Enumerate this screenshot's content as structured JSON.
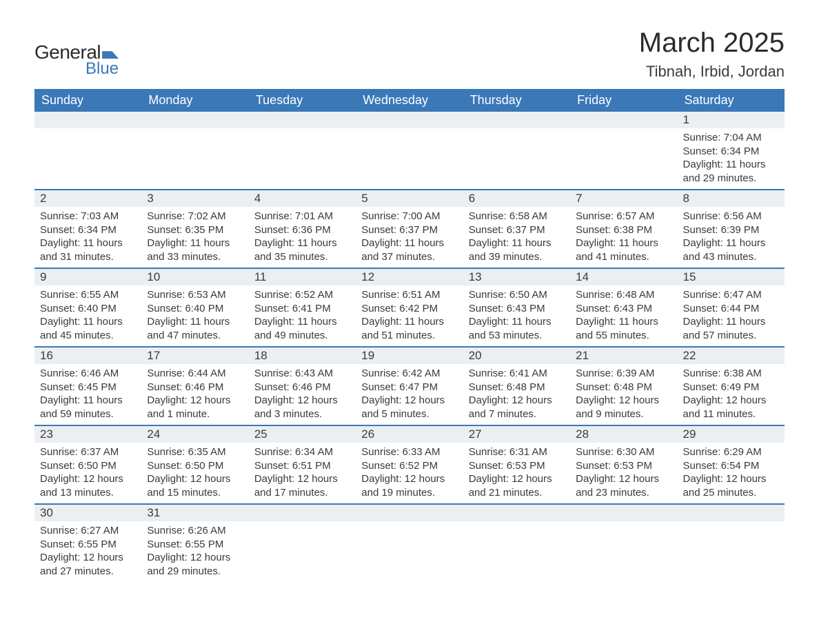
{
  "logo": {
    "general": "General",
    "blue": "Blue"
  },
  "title": "March 2025",
  "location": "Tibnah, Irbid, Jordan",
  "colors": {
    "header_bg": "#3a78b8",
    "header_text": "#ffffff",
    "daynum_bg": "#eceff1",
    "border": "#3a78b8",
    "text": "#3a3a3a",
    "page_bg": "#ffffff"
  },
  "typography": {
    "title_fontsize": 40,
    "location_fontsize": 22,
    "header_fontsize": 18,
    "daynum_fontsize": 17,
    "body_fontsize": 15
  },
  "weekdays": [
    "Sunday",
    "Monday",
    "Tuesday",
    "Wednesday",
    "Thursday",
    "Friday",
    "Saturday"
  ],
  "weeks": [
    [
      null,
      null,
      null,
      null,
      null,
      null,
      {
        "n": "1",
        "sr": "7:04 AM",
        "ss": "6:34 PM",
        "dl": "11 hours and 29 minutes."
      }
    ],
    [
      {
        "n": "2",
        "sr": "7:03 AM",
        "ss": "6:34 PM",
        "dl": "11 hours and 31 minutes."
      },
      {
        "n": "3",
        "sr": "7:02 AM",
        "ss": "6:35 PM",
        "dl": "11 hours and 33 minutes."
      },
      {
        "n": "4",
        "sr": "7:01 AM",
        "ss": "6:36 PM",
        "dl": "11 hours and 35 minutes."
      },
      {
        "n": "5",
        "sr": "7:00 AM",
        "ss": "6:37 PM",
        "dl": "11 hours and 37 minutes."
      },
      {
        "n": "6",
        "sr": "6:58 AM",
        "ss": "6:37 PM",
        "dl": "11 hours and 39 minutes."
      },
      {
        "n": "7",
        "sr": "6:57 AM",
        "ss": "6:38 PM",
        "dl": "11 hours and 41 minutes."
      },
      {
        "n": "8",
        "sr": "6:56 AM",
        "ss": "6:39 PM",
        "dl": "11 hours and 43 minutes."
      }
    ],
    [
      {
        "n": "9",
        "sr": "6:55 AM",
        "ss": "6:40 PM",
        "dl": "11 hours and 45 minutes."
      },
      {
        "n": "10",
        "sr": "6:53 AM",
        "ss": "6:40 PM",
        "dl": "11 hours and 47 minutes."
      },
      {
        "n": "11",
        "sr": "6:52 AM",
        "ss": "6:41 PM",
        "dl": "11 hours and 49 minutes."
      },
      {
        "n": "12",
        "sr": "6:51 AM",
        "ss": "6:42 PM",
        "dl": "11 hours and 51 minutes."
      },
      {
        "n": "13",
        "sr": "6:50 AM",
        "ss": "6:43 PM",
        "dl": "11 hours and 53 minutes."
      },
      {
        "n": "14",
        "sr": "6:48 AM",
        "ss": "6:43 PM",
        "dl": "11 hours and 55 minutes."
      },
      {
        "n": "15",
        "sr": "6:47 AM",
        "ss": "6:44 PM",
        "dl": "11 hours and 57 minutes."
      }
    ],
    [
      {
        "n": "16",
        "sr": "6:46 AM",
        "ss": "6:45 PM",
        "dl": "11 hours and 59 minutes."
      },
      {
        "n": "17",
        "sr": "6:44 AM",
        "ss": "6:46 PM",
        "dl": "12 hours and 1 minute."
      },
      {
        "n": "18",
        "sr": "6:43 AM",
        "ss": "6:46 PM",
        "dl": "12 hours and 3 minutes."
      },
      {
        "n": "19",
        "sr": "6:42 AM",
        "ss": "6:47 PM",
        "dl": "12 hours and 5 minutes."
      },
      {
        "n": "20",
        "sr": "6:41 AM",
        "ss": "6:48 PM",
        "dl": "12 hours and 7 minutes."
      },
      {
        "n": "21",
        "sr": "6:39 AM",
        "ss": "6:48 PM",
        "dl": "12 hours and 9 minutes."
      },
      {
        "n": "22",
        "sr": "6:38 AM",
        "ss": "6:49 PM",
        "dl": "12 hours and 11 minutes."
      }
    ],
    [
      {
        "n": "23",
        "sr": "6:37 AM",
        "ss": "6:50 PM",
        "dl": "12 hours and 13 minutes."
      },
      {
        "n": "24",
        "sr": "6:35 AM",
        "ss": "6:50 PM",
        "dl": "12 hours and 15 minutes."
      },
      {
        "n": "25",
        "sr": "6:34 AM",
        "ss": "6:51 PM",
        "dl": "12 hours and 17 minutes."
      },
      {
        "n": "26",
        "sr": "6:33 AM",
        "ss": "6:52 PM",
        "dl": "12 hours and 19 minutes."
      },
      {
        "n": "27",
        "sr": "6:31 AM",
        "ss": "6:53 PM",
        "dl": "12 hours and 21 minutes."
      },
      {
        "n": "28",
        "sr": "6:30 AM",
        "ss": "6:53 PM",
        "dl": "12 hours and 23 minutes."
      },
      {
        "n": "29",
        "sr": "6:29 AM",
        "ss": "6:54 PM",
        "dl": "12 hours and 25 minutes."
      }
    ],
    [
      {
        "n": "30",
        "sr": "6:27 AM",
        "ss": "6:55 PM",
        "dl": "12 hours and 27 minutes."
      },
      {
        "n": "31",
        "sr": "6:26 AM",
        "ss": "6:55 PM",
        "dl": "12 hours and 29 minutes."
      },
      null,
      null,
      null,
      null,
      null
    ]
  ],
  "labels": {
    "sunrise": "Sunrise:",
    "sunset": "Sunset:",
    "daylight": "Daylight:"
  }
}
